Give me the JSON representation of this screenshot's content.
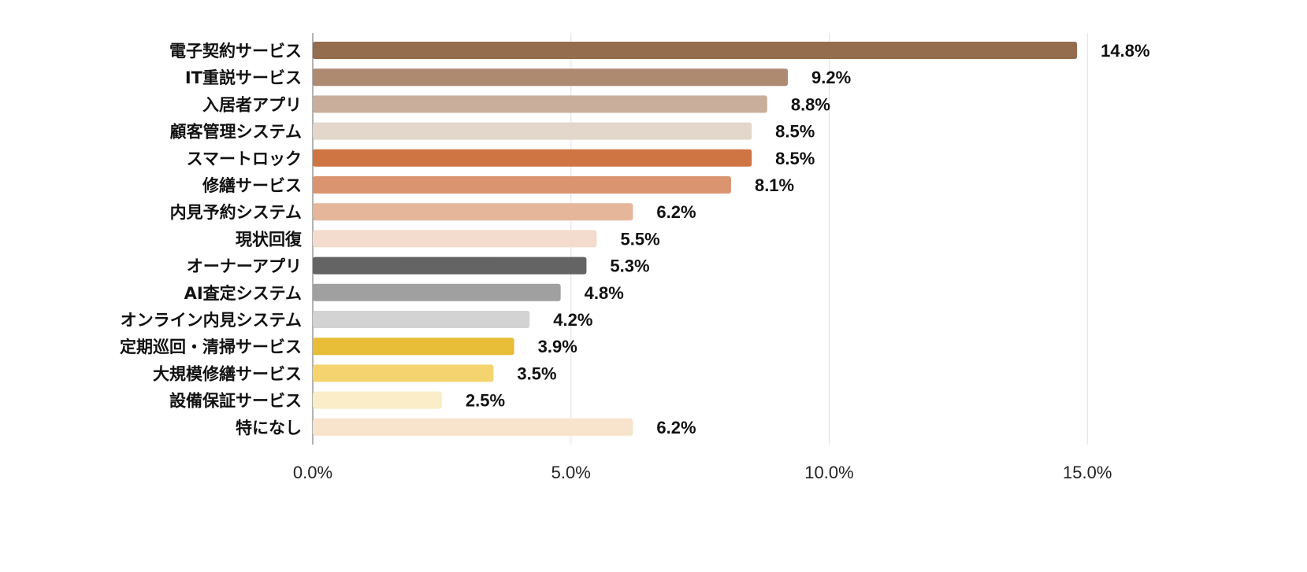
{
  "chart_data": {
    "type": "bar",
    "orientation": "horizontal",
    "title": "",
    "xlabel": "",
    "ylabel": "",
    "xlim": [
      0,
      15
    ],
    "grid": true,
    "legend": "none",
    "ticks": [
      "0.0%",
      "5.0%",
      "10.0%",
      "15.0%"
    ],
    "tick_values": [
      0,
      5,
      10,
      15
    ],
    "categories": [
      "電子契約サービス",
      "IT重説サービス",
      "入居者アプリ",
      "顧客管理システム",
      "スマートロック",
      "修繕サービス",
      "内見予約システム",
      "現状回復",
      "オーナーアプリ",
      "AI査定システム",
      "オンライン内見システム",
      "定期巡回・清掃サービス",
      "大規模修繕サービス",
      "設備保証サービス",
      "特になし"
    ],
    "values": [
      14.8,
      9.2,
      8.8,
      8.5,
      8.5,
      8.1,
      6.2,
      5.5,
      5.3,
      4.8,
      4.2,
      3.9,
      3.5,
      2.5,
      6.2
    ],
    "labels": [
      "14.8%",
      "9.2%",
      "8.8%",
      "8.5%",
      "8.5%",
      "8.1%",
      "6.2%",
      "5.5%",
      "5.3%",
      "4.8%",
      "4.2%",
      "3.9%",
      "3.5%",
      "2.5%",
      "6.2%"
    ],
    "colors": [
      "#946c4e",
      "#ad8a70",
      "#c8ae9b",
      "#e3d6cb",
      "#cf7443",
      "#da9570",
      "#e5b69a",
      "#f3dccd",
      "#646464",
      "#a0a0a0",
      "#d3d3d3",
      "#e8bd37",
      "#f5d470",
      "#faedc7",
      "#f8e3cc"
    ]
  }
}
